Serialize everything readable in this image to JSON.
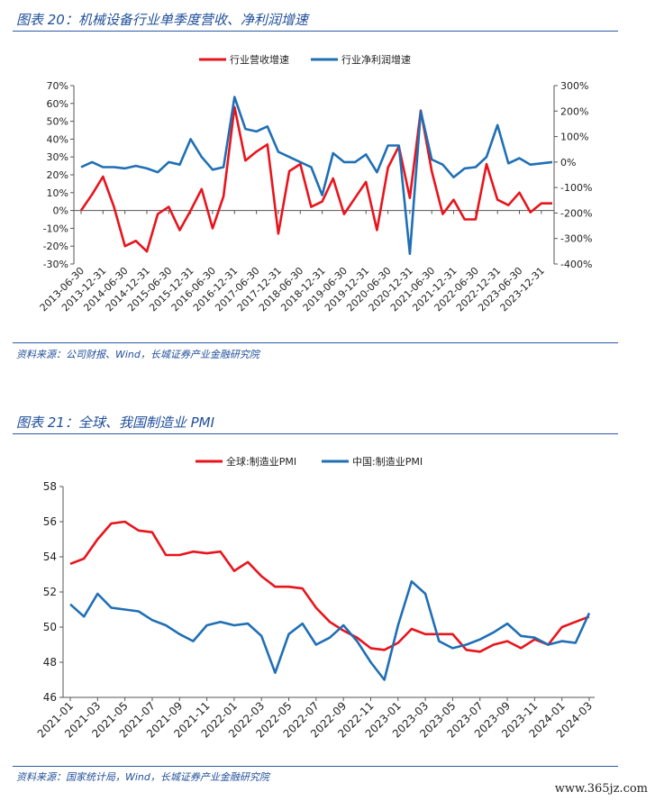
{
  "figure1": {
    "title": "图表 20：机械设备行业单季度营收、净利润增速",
    "source": "资料来源：公司财报、Wind，长城证券产业金融研究院"
  },
  "figure2": {
    "title": "图表 21：全球、我国制造业 PMI",
    "source": "资料来源：国家统计局，Wind，长城证券产业金融研究院"
  },
  "watermark": "www.365jz.com",
  "chart_data": [
    {
      "type": "line",
      "x_ticks": [
        "2013-06-30",
        "2013-12-31",
        "2014-06-30",
        "2014-12-31",
        "2015-06-30",
        "2015-12-31",
        "2016-06-30",
        "2016-12-31",
        "2017-06-30",
        "2017-12-31",
        "2018-06-30",
        "2018-12-31",
        "2019-06-30",
        "2019-12-31",
        "2020-06-30",
        "2020-12-31",
        "2021-06-30",
        "2021-12-31",
        "2022-06-30",
        "2022-12-31",
        "2023-06-30",
        "2023-12-31"
      ],
      "y_left_ticks": [
        "70%",
        "60%",
        "50%",
        "40%",
        "30%",
        "20%",
        "10%",
        "0%",
        "-10%",
        "-20%",
        "-30%"
      ],
      "y_right_ticks": [
        "300%",
        "200%",
        "100%",
        "0%",
        "-100%",
        "-200%",
        "-300%",
        "-400%"
      ],
      "y_left_range": [
        -30,
        70
      ],
      "y_right_range": [
        -400,
        300
      ],
      "series": [
        {
          "name": "行业营收增速",
          "axis": "left",
          "color": "#e8141c",
          "values": [
            0,
            9,
            19,
            2,
            -20,
            -17,
            -23,
            -2,
            2,
            -11,
            0,
            12,
            -10,
            8,
            58,
            28,
            33,
            37,
            -13,
            22,
            26,
            2,
            5,
            18,
            -2,
            7,
            16,
            -11,
            24,
            36,
            7,
            56,
            22,
            -2,
            6,
            -5,
            -5,
            26,
            6,
            3,
            10,
            -1,
            4,
            4
          ]
        },
        {
          "name": "行业净利润增速",
          "axis": "right",
          "color": "#1f6fb5",
          "values": [
            -20,
            0,
            -20,
            -20,
            -25,
            -15,
            -25,
            -40,
            0,
            -10,
            90,
            20,
            -30,
            -20,
            255,
            130,
            120,
            140,
            40,
            20,
            0,
            -20,
            -130,
            35,
            0,
            0,
            30,
            -40,
            65,
            65,
            -360,
            200,
            10,
            -10,
            -60,
            -25,
            -20,
            20,
            145,
            -5,
            15,
            -10,
            -5,
            0
          ]
        }
      ]
    },
    {
      "type": "line",
      "x_ticks": [
        "2021-01",
        "2021-03",
        "2021-05",
        "2021-07",
        "2021-09",
        "2021-11",
        "2022-01",
        "2022-03",
        "2022-05",
        "2022-07",
        "2022-09",
        "2022-11",
        "2023-01",
        "2023-03",
        "2023-05",
        "2023-07",
        "2023-09",
        "2023-11",
        "2024-01",
        "2024-03"
      ],
      "y_ticks": [
        "58",
        "56",
        "54",
        "52",
        "50",
        "48",
        "46"
      ],
      "ylim": [
        46,
        58
      ],
      "series": [
        {
          "name": "全球:制造业PMI",
          "color": "#e8141c",
          "values": [
            53.6,
            53.9,
            55.0,
            55.9,
            56.0,
            55.5,
            55.4,
            54.1,
            54.1,
            54.3,
            54.2,
            54.3,
            53.2,
            53.7,
            52.9,
            52.3,
            52.3,
            52.2,
            51.1,
            50.3,
            49.8,
            49.4,
            48.8,
            48.7,
            49.1,
            49.9,
            49.6,
            49.6,
            49.6,
            48.7,
            48.6,
            49.0,
            49.2,
            48.8,
            49.3,
            49.0,
            50.0,
            50.3,
            50.6
          ]
        },
        {
          "name": "中国:制造业PMI",
          "color": "#1f6fb5",
          "values": [
            51.3,
            50.6,
            51.9,
            51.1,
            51.0,
            50.9,
            50.4,
            50.1,
            49.6,
            49.2,
            50.1,
            50.3,
            50.1,
            50.2,
            49.5,
            47.4,
            49.6,
            50.2,
            49.0,
            49.4,
            50.1,
            49.2,
            48.0,
            47.0,
            50.1,
            52.6,
            51.9,
            49.2,
            48.8,
            49.0,
            49.3,
            49.7,
            50.2,
            49.5,
            49.4,
            49.0,
            49.2,
            49.1,
            50.8
          ]
        }
      ]
    }
  ]
}
